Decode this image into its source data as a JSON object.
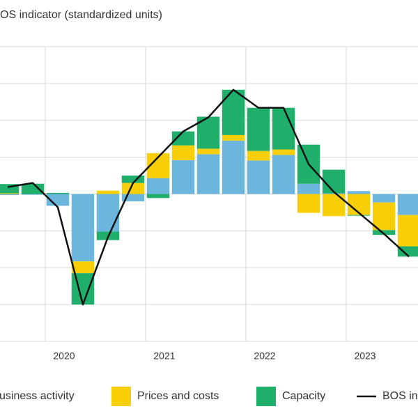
{
  "chart_data": {
    "type": "bar",
    "stacked": true,
    "title": "OS indicator (standardized units)",
    "x": [
      2019.625,
      2019.875,
      2020.125,
      2020.375,
      2020.625,
      2020.875,
      2021.125,
      2021.375,
      2021.625,
      2021.875,
      2022.125,
      2022.375,
      2022.625,
      2022.875,
      2023.125,
      2023.375,
      2023.625
    ],
    "xlim": [
      2019.549,
      2023.715
    ],
    "xticks": [
      2020,
      2021,
      2022,
      2023
    ],
    "ylim": [
      -4,
      4
    ],
    "yticks": [
      -4,
      -3,
      -2,
      -1,
      0,
      1,
      2,
      3,
      4
    ],
    "grid": true,
    "legend": "bottom",
    "series": [
      {
        "name": "usiness activity",
        "color": "#6cb6de",
        "values": [
          -0.03,
          -0.02,
          -0.32,
          -1.83,
          -1.02,
          -0.2,
          0.43,
          0.92,
          1.08,
          1.45,
          0.91,
          1.06,
          0.28,
          0.02,
          0.08,
          -0.23,
          -0.57
        ]
      },
      {
        "name": "Prices and costs",
        "color": "#f8cf06",
        "values": [
          0.02,
          0.0,
          0.0,
          -0.32,
          0.09,
          0.3,
          0.68,
          0.4,
          0.15,
          0.15,
          0.26,
          0.15,
          -0.51,
          -0.6,
          -0.57,
          -0.75,
          -0.85
        ]
      },
      {
        "name": "Capacity",
        "color": "#1faf6b",
        "values": [
          0.25,
          0.28,
          0.03,
          -0.85,
          -0.23,
          0.2,
          -0.11,
          0.38,
          0.87,
          1.23,
          1.17,
          1.13,
          1.06,
          0.64,
          -0.02,
          -0.13,
          -0.28
        ]
      },
      {
        "name": "BOS in",
        "color": "#111111",
        "type": "line",
        "values": [
          0.19,
          0.3,
          -0.36,
          -3.0,
          -1.17,
          0.3,
          1.0,
          1.7,
          2.08,
          2.83,
          2.34,
          2.34,
          0.81,
          0.06,
          -0.51,
          -1.08,
          -1.7
        ]
      }
    ]
  }
}
